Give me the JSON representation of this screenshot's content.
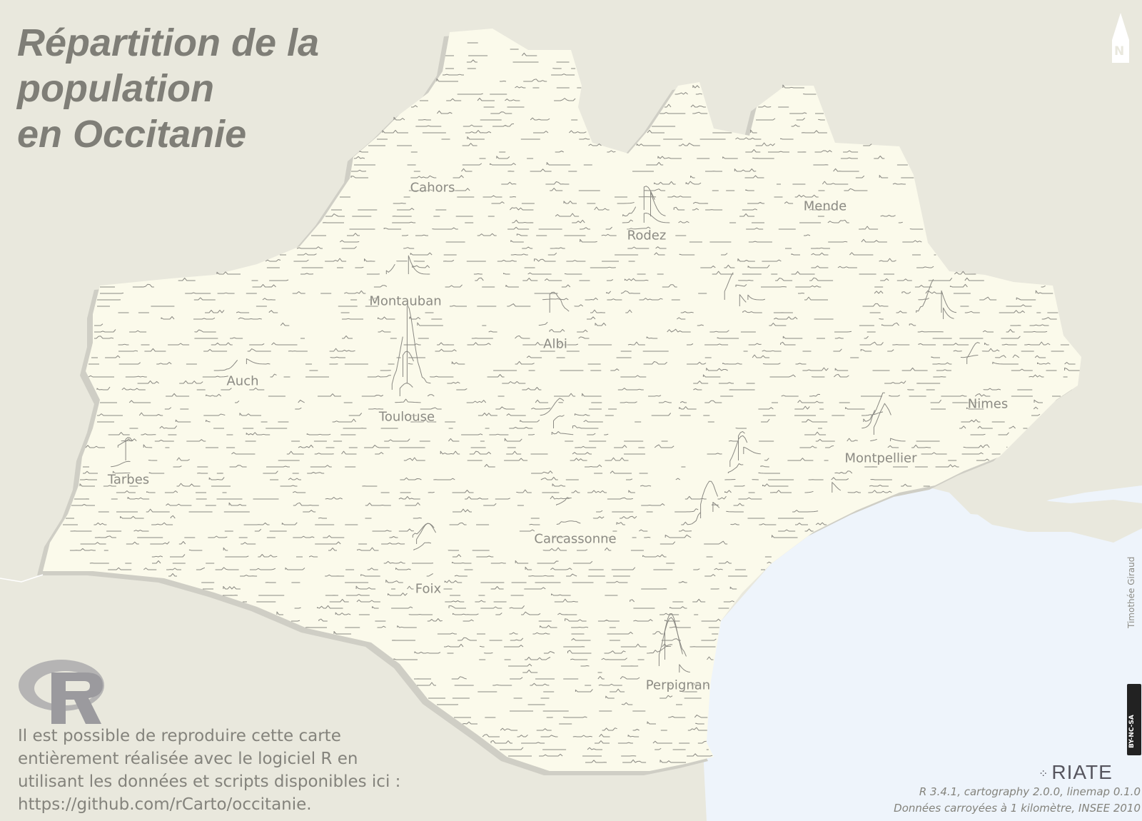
{
  "title": {
    "line1": "Répartition de la",
    "line2": "population",
    "line3": "en Occitanie"
  },
  "cities": [
    {
      "id": "cahors",
      "name": "Cahors"
    },
    {
      "id": "mende",
      "name": "Mende"
    },
    {
      "id": "rodez",
      "name": "Rodez"
    },
    {
      "id": "montauban",
      "name": "Montauban"
    },
    {
      "id": "albi",
      "name": "Albi"
    },
    {
      "id": "auch",
      "name": "Auch"
    },
    {
      "id": "toulouse",
      "name": "Toulouse"
    },
    {
      "id": "nimes",
      "name": "Nimes"
    },
    {
      "id": "montpellier",
      "name": "Montpellier"
    },
    {
      "id": "tarbes",
      "name": "Tarbes"
    },
    {
      "id": "carcassonne",
      "name": "Carcassonne"
    },
    {
      "id": "foix",
      "name": "Foix"
    },
    {
      "id": "perpignan",
      "name": "Perpignan"
    }
  ],
  "reproduction_text": "Il est possible de reproduire cette carte entièrement réalisée avec le logiciel R en utilisant les données et scripts disponibles ici : https://github.com/rCarto/occitanie.",
  "north_label": "N",
  "author": "Timothée Giraud",
  "license": "BY-NC-SA",
  "riate_logo_text": "RIATE",
  "source": {
    "line1": "R 3.4.1, cartography 2.0.0, linemap 0.1.0",
    "line2": "Données carroyées à 1 kilomètre, INSEE 2010"
  },
  "colors": {
    "background": "#e9e8dd",
    "region_fill": "#fbfaeb",
    "sea": "#eef4fb",
    "lines": "#8a8983",
    "text": "#7f7e77"
  }
}
